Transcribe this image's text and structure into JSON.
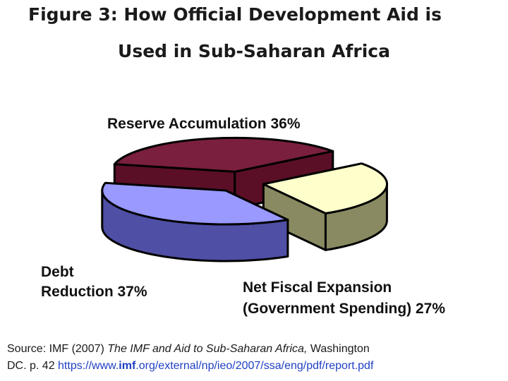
{
  "figure": {
    "title_line1": "Figure 3: How Official Development Aid is",
    "title_line2": "Used in Sub-Saharan Africa"
  },
  "chart_data": {
    "type": "pie",
    "style": "3d-exploded",
    "slices": [
      {
        "label": "Reserve Accumulation 36%",
        "value": 36,
        "color": "#7a1f3d",
        "side_color": "#5a0f26"
      },
      {
        "label": "Net Fiscal Expansion (Government Spending) 27%",
        "value": 27,
        "color": "#ffffcc",
        "side_color": "#8a8a62"
      },
      {
        "label": "Debt Reduction 37%",
        "value": 37,
        "color": "#9999ff",
        "side_color": "#4f4fa6"
      }
    ],
    "label_lines": {
      "reserve": "Reserve Accumulation 36%",
      "debt_1": "Debt",
      "debt_2": "Reduction 37%",
      "fiscal_1": "Net Fiscal Expansion",
      "fiscal_2": "(Government Spending) 27%"
    },
    "outline_color": "#000000"
  },
  "source": {
    "prefix": "Source: IMF (2007) ",
    "title": "The IMF and Aid to Sub-Saharan Africa,",
    "suffix_line1": " Washington",
    "line2_prefix": "DC. p. 42 ",
    "url_before": "https://www.",
    "url_bold": "imf",
    "url_after": ".org/external/np/ieo/2007/ssa/eng/pdf/report.pdf"
  }
}
